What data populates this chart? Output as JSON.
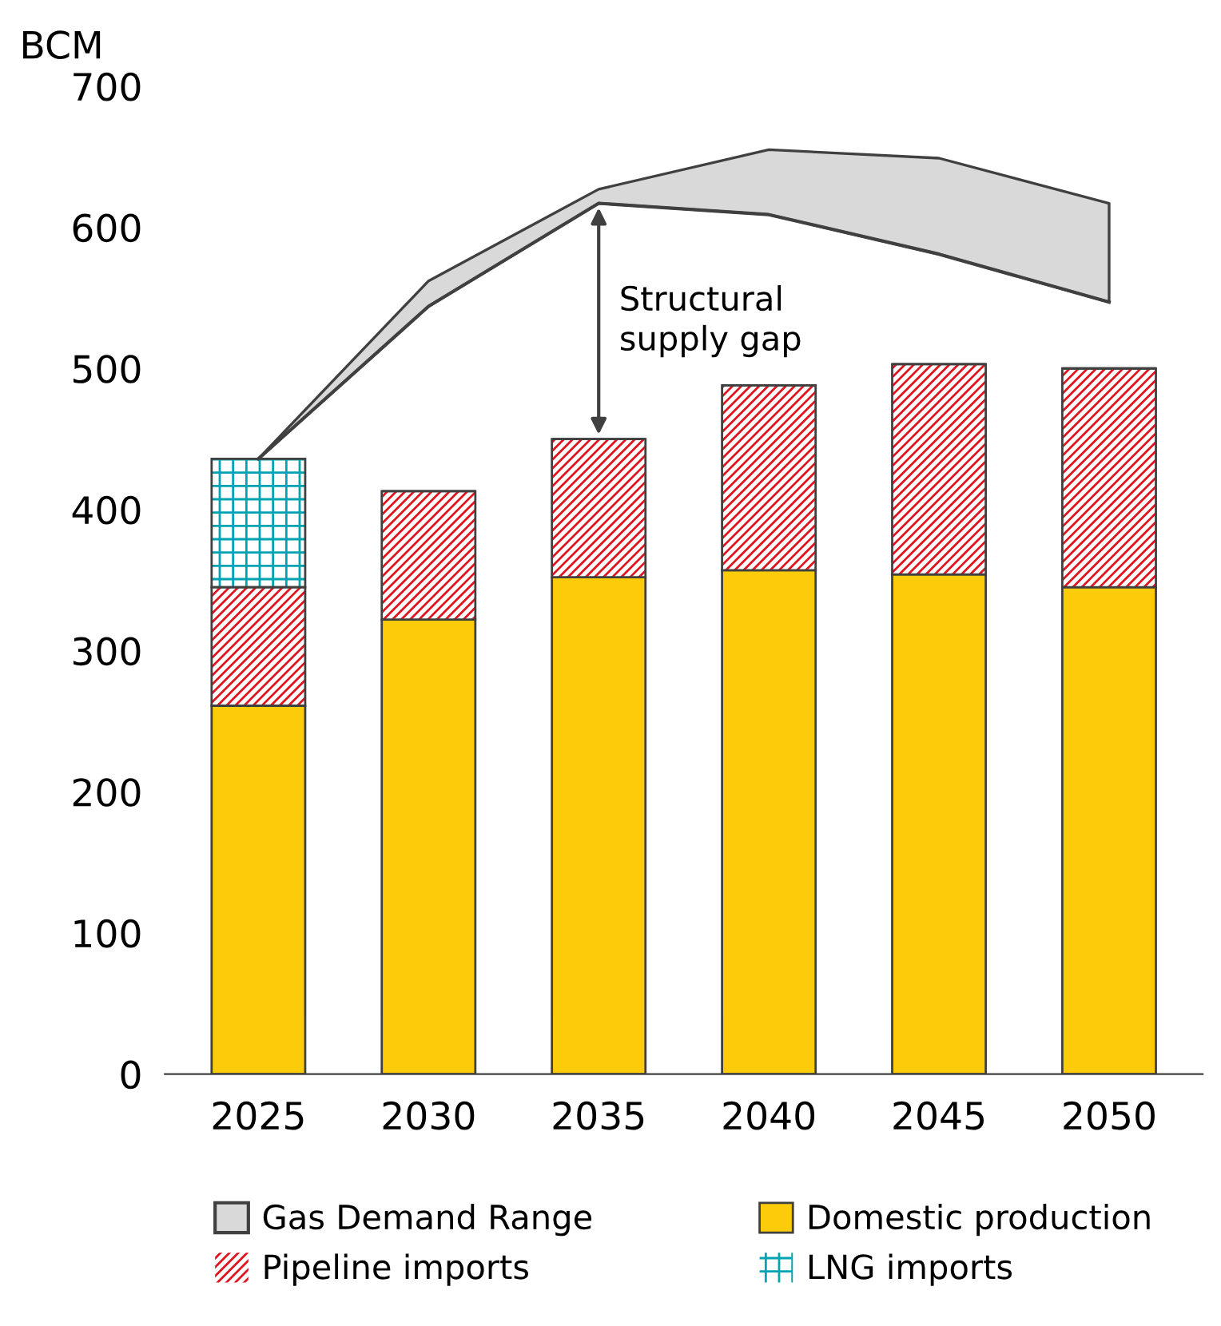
{
  "chart_data": {
    "type": "bar",
    "stacked": true,
    "ylabel": "BCM",
    "categories": [
      "2025",
      "2030",
      "2035",
      "2040",
      "2045",
      "2050"
    ],
    "ylim": [
      0,
      700
    ],
    "yticks": [
      0,
      100,
      200,
      300,
      400,
      500,
      600,
      700
    ],
    "grid": false,
    "legend": "bottom",
    "series": [
      {
        "name": "Gas Demand Range",
        "type": "line",
        "color": "#404040",
        "values": [
          436,
          544,
          617,
          609,
          581,
          547
        ],
        "lower": [
          436,
          544,
          617,
          609,
          581,
          547
        ],
        "upper": [
          436,
          562,
          627,
          655,
          649,
          617
        ]
      },
      {
        "name": "Domestic production",
        "color": "#fccc0a",
        "values": [
          261,
          322,
          352,
          357,
          354,
          345
        ]
      },
      {
        "name": "Pipeline imports",
        "color": "#e0141e",
        "values": [
          84,
          91,
          98,
          131,
          149,
          155
        ]
      },
      {
        "name": "LNG imports",
        "color": "#00a3b4",
        "values": [
          91,
          null,
          null,
          null,
          null,
          null
        ]
      }
    ],
    "annotations": [
      "Structural\nsupply gap"
    ]
  }
}
